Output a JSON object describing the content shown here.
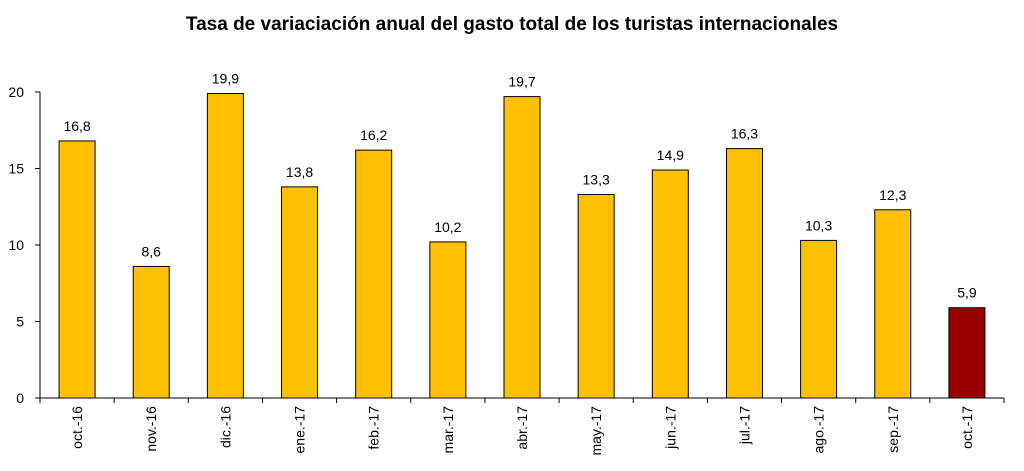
{
  "chart_data": {
    "type": "bar",
    "title": "Tasa de variaciación anual del gasto total de los turistas internacionales",
    "xlabel": "",
    "ylabel": "",
    "ylim": [
      0,
      20
    ],
    "yticks": [
      0,
      5,
      10,
      15,
      20
    ],
    "grid": false,
    "legend": "none",
    "categories": [
      "oct.-16",
      "nov.-16",
      "dic.-16",
      "ene.-17",
      "feb.-17",
      "mar.-17",
      "abr.-17",
      "may.-17",
      "jun.-17",
      "jul.-17",
      "ago.-17",
      "sep.-17",
      "oct.-17"
    ],
    "values": [
      16.8,
      8.6,
      19.9,
      13.8,
      16.2,
      10.2,
      19.7,
      13.3,
      14.9,
      16.3,
      10.3,
      12.3,
      5.9
    ],
    "data_labels": [
      "16,8",
      "8,6",
      "19,9",
      "13,8",
      "16,2",
      "10,2",
      "19,7",
      "13,3",
      "14,9",
      "16,3",
      "10,3",
      "12,3",
      "5,9"
    ],
    "colors": {
      "bar": "#FFC000",
      "highlight": "#990000",
      "outline": "#000000",
      "axis": "#000000"
    },
    "highlight_index": 12
  }
}
